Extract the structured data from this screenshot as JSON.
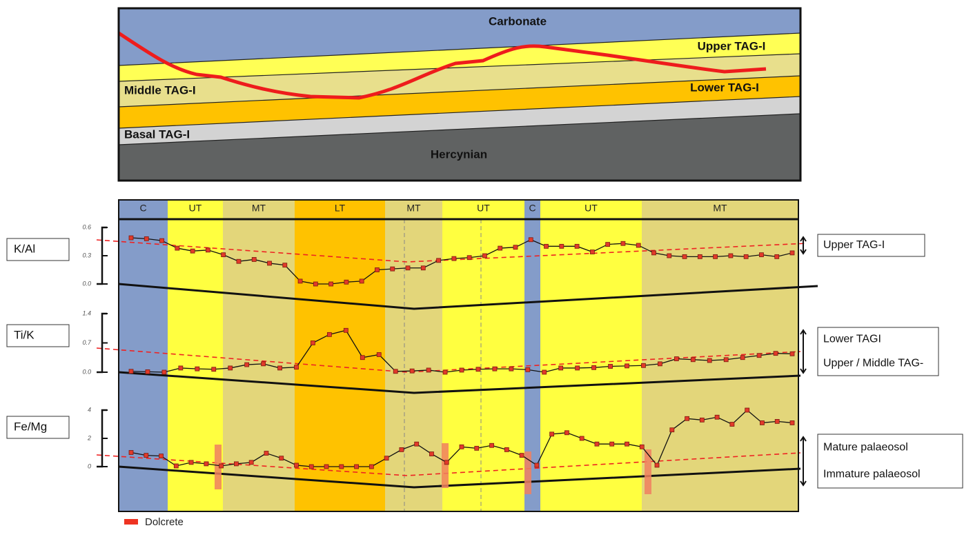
{
  "cross_section": {
    "layers": [
      "Carbonate",
      "Upper TAG-I",
      "Middle TAG-I",
      "Lower TAG-I",
      "Basal TAG-I",
      "Hercynian"
    ]
  },
  "zones": [
    "C",
    "UT",
    "MT",
    "LT",
    "MT",
    "UT",
    "C",
    "UT",
    "MT"
  ],
  "profiles": [
    {
      "name": "K/Al",
      "ylim": [
        0,
        0.6
      ],
      "yticks": [
        {
          "value": 0,
          "label": "0.0"
        },
        0.3,
        0.6
      ],
      "values": [
        0.49,
        0.48,
        0.46,
        0.38,
        0.35,
        0.36,
        0.31,
        0.24,
        0.26,
        0.22,
        0.2,
        0.03,
        0.0,
        0.0,
        0.02,
        0.03,
        0.15,
        0.16,
        0.17,
        0.17,
        0.25,
        0.27,
        0.28,
        0.3,
        0.38,
        0.39,
        0.47,
        0.4,
        0.4,
        0.4,
        0.34,
        0.42,
        0.43,
        0.41,
        0.33,
        0.3,
        0.29,
        0.29,
        0.29,
        0.3,
        0.29,
        0.31,
        0.29,
        0.33
      ],
      "notes": [
        "Upper TAG-I"
      ]
    },
    {
      "name": "Ti/K",
      "ylim": [
        0,
        1.4
      ],
      "yticks": [
        {
          "value": 0,
          "label": "0.0"
        },
        0.7,
        1.4
      ],
      "values": [
        0.02,
        0.01,
        0.0,
        0.1,
        0.08,
        0.07,
        0.1,
        0.18,
        0.2,
        0.1,
        0.12,
        0.7,
        0.9,
        1.0,
        0.35,
        0.42,
        0.02,
        0.03,
        0.05,
        0.0,
        0.05,
        0.07,
        0.08,
        0.08,
        0.06,
        0.0,
        0.1,
        0.1,
        0.11,
        0.14,
        0.15,
        0.16,
        0.2,
        0.32,
        0.3,
        0.28,
        0.3,
        0.35,
        0.4,
        0.45,
        0.44
      ],
      "notes": [
        "Lower TAGI",
        "Upper / Middle TAG-"
      ]
    },
    {
      "name": "Fe/Mg",
      "ylim": [
        0,
        4
      ],
      "yticks": [
        0,
        2,
        4
      ],
      "values": [
        1.0,
        0.8,
        0.75,
        0.05,
        0.3,
        0.2,
        0.05,
        0.2,
        0.3,
        0.95,
        0.6,
        0.1,
        0.0,
        0.0,
        0.0,
        0.0,
        0.0,
        0.6,
        1.2,
        1.6,
        0.9,
        0.3,
        1.4,
        1.3,
        1.5,
        1.2,
        0.8,
        0.1,
        2.3,
        2.4,
        2.0,
        1.6,
        1.6,
        1.6,
        1.4,
        0.1,
        2.6,
        3.4,
        3.3,
        3.5,
        3.0,
        4.0,
        3.1,
        3.2,
        3.1
      ],
      "notes": [
        "Mature palaeosol",
        "Immature palaeosol"
      ]
    }
  ],
  "legend": "Dolcrete"
}
